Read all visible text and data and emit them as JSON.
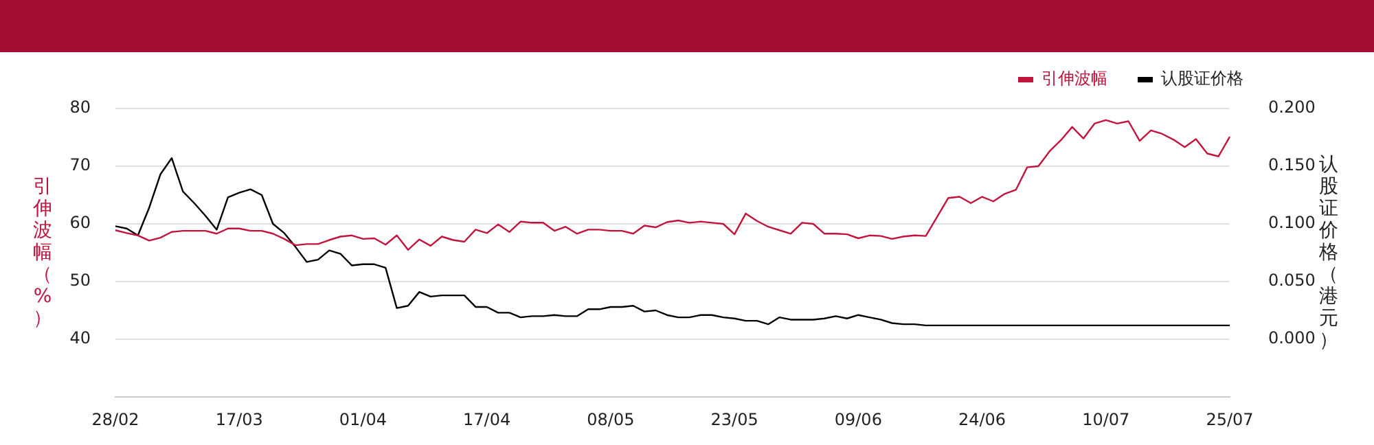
{
  "chart_data": {
    "type": "line",
    "ylabel": "引伸波幅（%）",
    "y2label": "认股证价格（港元）",
    "categories": [
      "28/02",
      null,
      null,
      null,
      null,
      null,
      null,
      null,
      null,
      null,
      null,
      "17/03",
      null,
      null,
      null,
      null,
      null,
      null,
      null,
      null,
      null,
      null,
      "01/04",
      null,
      null,
      null,
      null,
      null,
      null,
      null,
      null,
      null,
      null,
      "17/04",
      null,
      null,
      null,
      null,
      null,
      null,
      null,
      null,
      null,
      null,
      "08/05",
      null,
      null,
      null,
      null,
      null,
      null,
      null,
      null,
      null,
      null,
      "23/05",
      null,
      null,
      null,
      null,
      null,
      null,
      null,
      null,
      null,
      null,
      "09/06",
      null,
      null,
      null,
      null,
      null,
      null,
      null,
      null,
      null,
      null,
      "24/06",
      null,
      null,
      null,
      null,
      null,
      null,
      null,
      null,
      null,
      null,
      "10/07",
      null,
      null,
      null,
      null,
      null,
      null,
      null,
      null,
      null,
      null,
      "25/07"
    ],
    "series": [
      {
        "name": "引伸波幅",
        "color": "#c0143c",
        "values": [
          58.9,
          58.4,
          58.0,
          57.1,
          57.6,
          58.6,
          58.8,
          58.8,
          58.8,
          58.3,
          59.2,
          59.2,
          58.8,
          58.8,
          58.3,
          57.4,
          56.3,
          56.5,
          56.5,
          57.2,
          57.8,
          58.0,
          57.4,
          57.5,
          56.4,
          58.0,
          55.5,
          57.3,
          56.2,
          57.8,
          57.2,
          56.9,
          59.0,
          58.4,
          59.9,
          58.6,
          60.4,
          60.2,
          60.2,
          58.8,
          59.5,
          58.3,
          59.0,
          59.0,
          58.8,
          58.8,
          58.3,
          59.7,
          59.4,
          60.3,
          60.6,
          60.2,
          60.4,
          60.2,
          60.0,
          58.2,
          61.8,
          60.5,
          59.5,
          58.9,
          58.3,
          60.2,
          60.0,
          58.3,
          58.3,
          58.2,
          57.5,
          58.0,
          57.9,
          57.4,
          57.8,
          58.0,
          57.9,
          61.2,
          64.5,
          64.7,
          63.6,
          64.7,
          63.9,
          65.2,
          65.9,
          69.8,
          70.0,
          72.6,
          74.5,
          76.8,
          74.8,
          77.4,
          78.0,
          77.4,
          77.8,
          74.4,
          76.2,
          75.6,
          74.6,
          73.3,
          74.7,
          72.2,
          71.7,
          75.1
        ]
      },
      {
        "name": "认股证价格",
        "color": "#000000",
        "axis": "y2",
        "values": [
          0.098,
          0.096,
          0.09,
          0.114,
          0.143,
          0.157,
          0.128,
          0.118,
          0.107,
          0.095,
          0.123,
          0.127,
          0.13,
          0.125,
          0.1,
          0.092,
          0.08,
          0.067,
          0.069,
          0.077,
          0.074,
          0.064,
          0.065,
          0.065,
          0.062,
          0.027,
          0.029,
          0.041,
          0.037,
          0.038,
          0.038,
          0.038,
          0.028,
          0.028,
          0.023,
          0.023,
          0.019,
          0.02,
          0.02,
          0.021,
          0.02,
          0.02,
          0.026,
          0.026,
          0.028,
          0.028,
          0.029,
          0.024,
          0.025,
          0.021,
          0.019,
          0.019,
          0.021,
          0.021,
          0.019,
          0.018,
          0.016,
          0.016,
          0.013,
          0.019,
          0.017,
          0.017,
          0.017,
          0.018,
          0.02,
          0.018,
          0.021,
          0.019,
          0.017,
          0.014,
          0.013,
          0.013,
          0.012,
          0.012,
          0.012,
          0.012,
          0.012,
          0.012,
          0.012,
          0.012,
          0.012,
          0.012,
          0.012,
          0.012,
          0.012,
          0.012,
          0.012,
          0.012,
          0.012,
          0.012,
          0.012,
          0.012,
          0.012,
          0.012,
          0.012,
          0.012,
          0.012,
          0.012,
          0.012,
          0.012
        ]
      }
    ],
    "ylim": [
      30,
      80
    ],
    "yticks": [
      40,
      50,
      60,
      70,
      80
    ],
    "y2lim": [
      -0.05,
      0.2
    ],
    "y2ticks": [
      {
        "value": 0,
        "label": "0.000"
      },
      {
        "value": 0.05,
        "label": "0.050"
      },
      {
        "value": 0.1,
        "label": "0.100"
      },
      {
        "value": 0.15,
        "label": "0.150"
      },
      {
        "value": 0.2,
        "label": "0.200"
      }
    ],
    "grid": "y",
    "legend": "top right",
    "marker": "none",
    "line_style": "solid"
  }
}
